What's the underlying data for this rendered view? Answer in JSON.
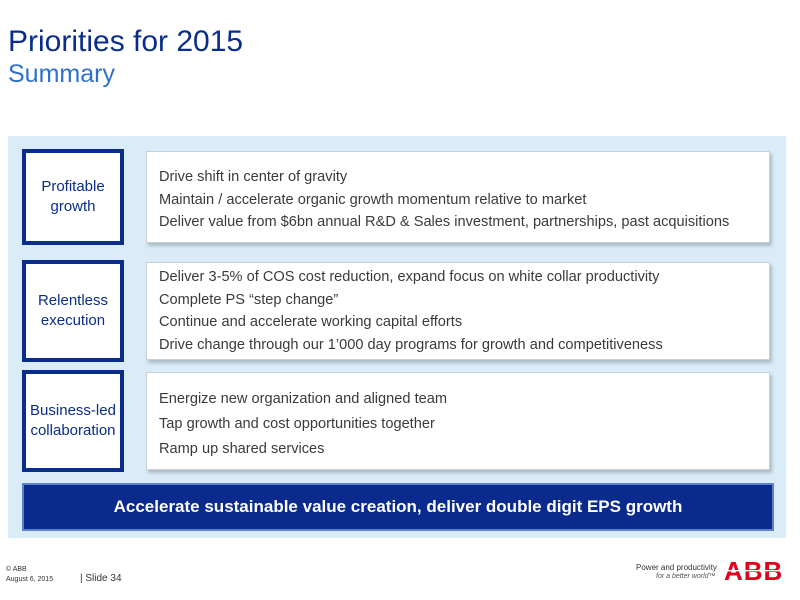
{
  "header": {
    "title": "Priorities for 2015",
    "subtitle": "Summary"
  },
  "rows": [
    {
      "label": "Profitable growth",
      "items": [
        "Drive shift in center of gravity",
        "Maintain / accelerate organic growth momentum relative to market",
        "Deliver value from $6bn annual R&D & Sales investment, partnerships, past acquisitions"
      ]
    },
    {
      "label": "Relentless execution",
      "items": [
        "Deliver 3-5% of COS cost reduction, expand focus on white collar productivity",
        "Complete PS “step change”",
        "Continue and accelerate working capital efforts",
        "Drive change through our 1’000 day programs for growth and competitiveness"
      ]
    },
    {
      "label": "Business-led collaboration",
      "items": [
        "Energize new organization and aligned team",
        "Tap growth and cost opportunities together",
        "Ramp up shared services"
      ]
    }
  ],
  "banner": "Accelerate sustainable value creation, deliver double digit EPS growth",
  "footer": {
    "copyright": "© ABB",
    "date": "August 6, 2015",
    "slide": "| Slide 34",
    "tagline": "Power and productivity",
    "tagline2": "for a better world™",
    "logo_text": "ABB"
  },
  "colors": {
    "title": "#0a2d8c",
    "subtitle": "#2f6fce",
    "panel": "#d9ecf8",
    "banner": "#0b2a8d",
    "logo": "#e2001a"
  }
}
